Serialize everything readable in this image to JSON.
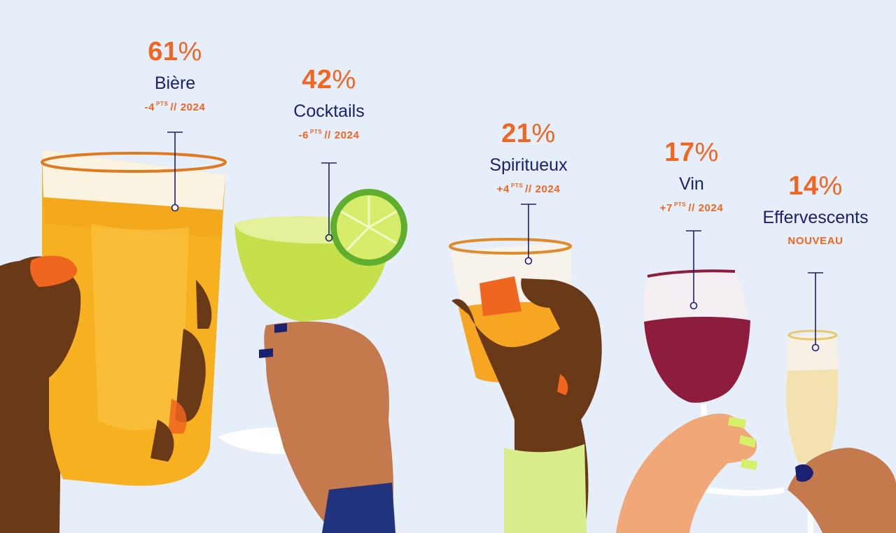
{
  "drinks": [
    {
      "id": "biere",
      "percent": "61",
      "percent_symbol": "%",
      "name": "Bière",
      "delta_value": "-4",
      "delta_unit": "PTS",
      "delta_suffix": "// 2024",
      "icon": "beer-glass-icon"
    },
    {
      "id": "cocktails",
      "percent": "42",
      "percent_symbol": "%",
      "name": "Cocktails",
      "delta_value": "-6",
      "delta_unit": "PTS",
      "delta_suffix": "// 2024",
      "icon": "cocktail-glass-icon"
    },
    {
      "id": "spiritueux",
      "percent": "21",
      "percent_symbol": "%",
      "name": "Spiritueux",
      "delta_value": "+4",
      "delta_unit": "PTS",
      "delta_suffix": "// 2024",
      "icon": "spirits-glass-icon"
    },
    {
      "id": "vin",
      "percent": "17",
      "percent_symbol": "%",
      "name": "Vin",
      "delta_value": "+7",
      "delta_unit": "PTS",
      "delta_suffix": "// 2024",
      "icon": "wine-glass-icon"
    },
    {
      "id": "effervescents",
      "percent": "14",
      "percent_symbol": "%",
      "name": "Effervescents",
      "badge": "NOUVEAU",
      "icon": "champagne-flute-icon"
    }
  ],
  "colors": {
    "background": "#e6eefa",
    "accent_orange": "#f0651f",
    "navy": "#1b2070"
  }
}
